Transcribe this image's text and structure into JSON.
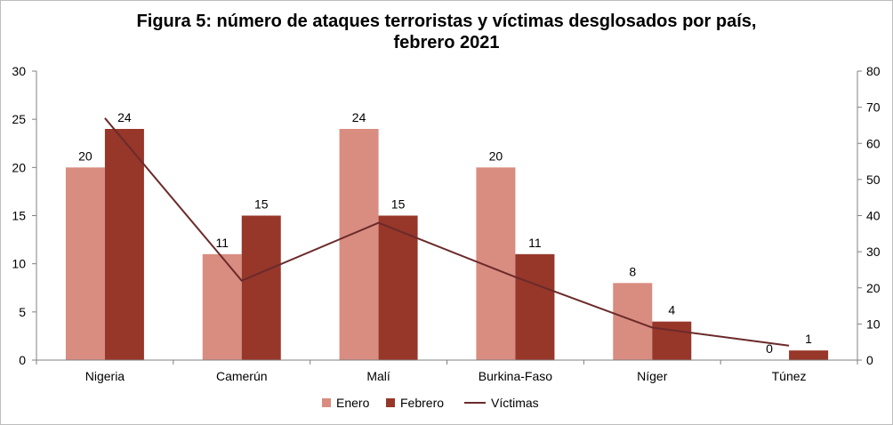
{
  "chart_data": {
    "type": "bar",
    "title_line1": "Figura 5: número de ataques terroristas y víctimas desglosados por país,",
    "title_line2": "febrero 2021",
    "categories": [
      "Nigeria",
      "Camerún",
      "Malí",
      "Burkina-Faso",
      "Níger",
      "Túnez"
    ],
    "series": [
      {
        "name": "Enero",
        "kind": "bar",
        "axis": "left",
        "color": "#D98C80",
        "values": [
          20,
          11,
          24,
          20,
          8,
          0
        ]
      },
      {
        "name": "Febrero",
        "kind": "bar",
        "axis": "left",
        "color": "#96372A",
        "values": [
          24,
          15,
          15,
          11,
          4,
          1
        ]
      },
      {
        "name": "Víctimas",
        "kind": "line",
        "axis": "right",
        "color": "#6B2A2A",
        "values": [
          67,
          22,
          38,
          23,
          9,
          4
        ]
      }
    ],
    "ylim_left": [
      0,
      30
    ],
    "yticks_left": [
      0,
      5,
      10,
      15,
      20,
      25,
      30
    ],
    "ylim_right": [
      0,
      80
    ],
    "yticks_right": [
      0,
      10,
      20,
      30,
      40,
      50,
      60,
      70,
      80
    ],
    "legend_position": "bottom",
    "grid": false,
    "data_labels": true
  }
}
